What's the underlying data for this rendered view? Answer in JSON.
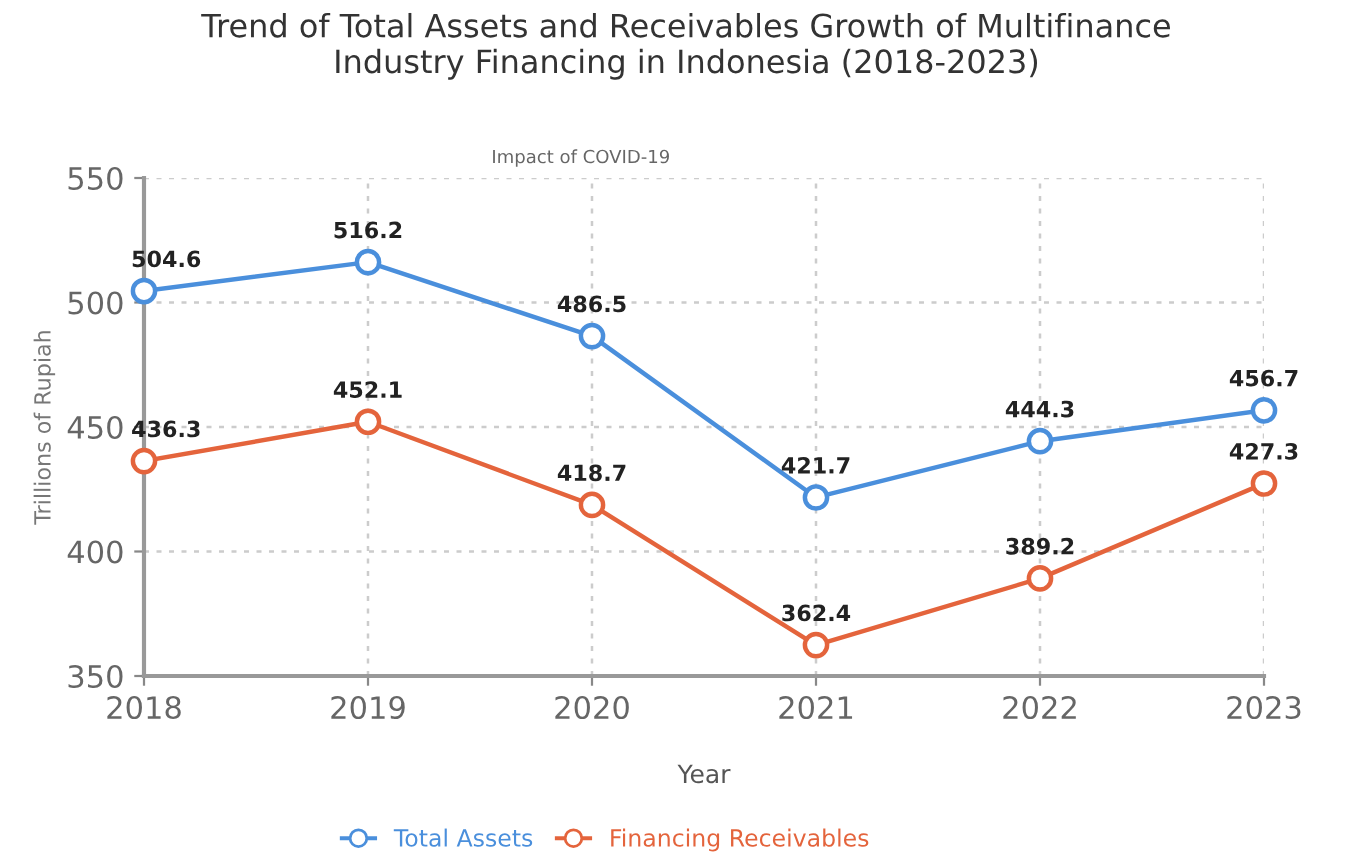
{
  "chart_data": {
    "type": "line",
    "title": "Trend of Total Assets and Receivables Growth of Multifinance\nIndustry Financing in Indonesia (2018-2023)",
    "xlabel": "Year",
    "ylabel": "Trillions of Rupiah",
    "categories": [
      "2018",
      "2019",
      "2020",
      "2021",
      "2022",
      "2023"
    ],
    "series": [
      {
        "name": "Total Assets",
        "color": "#4a8fdc",
        "values": [
          504.6,
          516.2,
          486.5,
          421.7,
          444.3,
          456.7
        ]
      },
      {
        "name": "Financing Receivables",
        "color": "#e4643c",
        "values": [
          436.3,
          452.1,
          418.7,
          362.4,
          389.2,
          427.3
        ]
      }
    ],
    "ylim": [
      350,
      550
    ],
    "yticks": [
      350,
      400,
      450,
      500,
      550
    ],
    "grid": true,
    "legend": "bottom",
    "marker": "circle",
    "line_style": "solid",
    "data_labels": true,
    "annotations": [
      "Impact of COVID-19"
    ]
  }
}
